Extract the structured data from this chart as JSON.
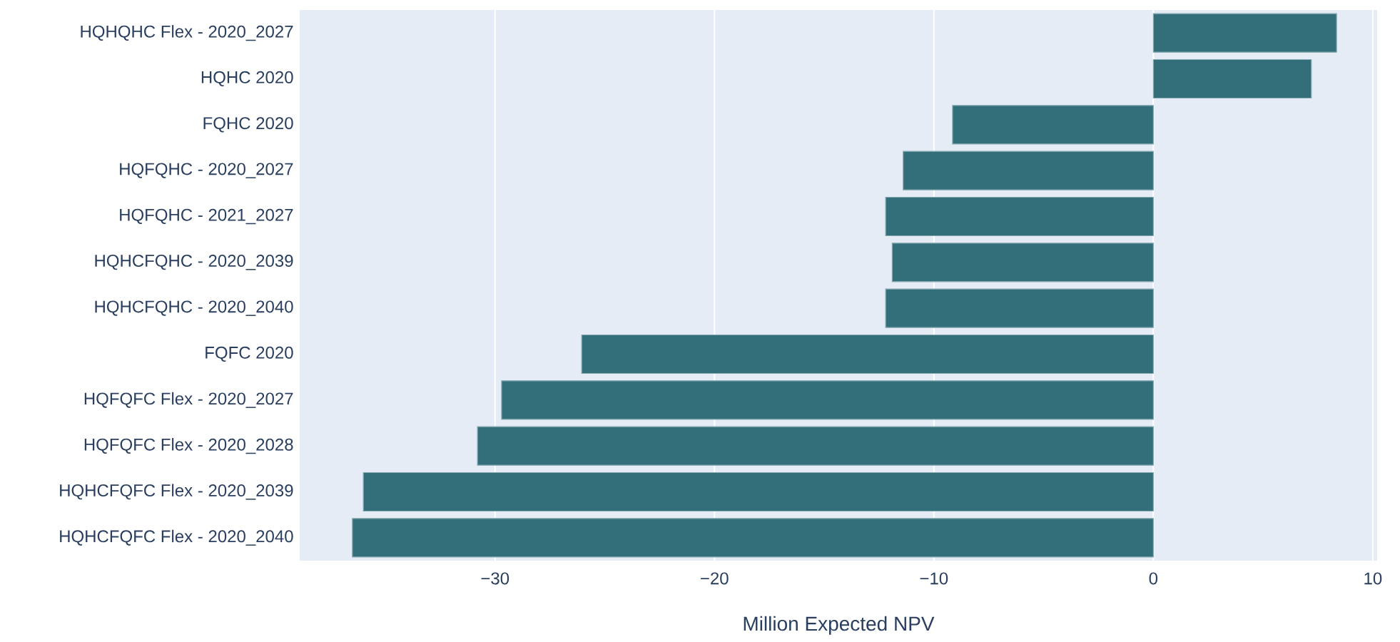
{
  "chart_data": {
    "type": "bar",
    "orientation": "horizontal",
    "xlabel": "Million Expected NPV",
    "categories": [
      "HQHQHC Flex - 2020_2027",
      "HQHC 2020",
      "FQHC 2020",
      "HQFQHC - 2020_2027",
      "HQFQHC - 2021_2027",
      "HQHCFQHC - 2020_2039",
      "HQHCFQHC - 2020_2040",
      "FQFC 2020",
      "HQFQFC Flex - 2020_2027",
      "HQFQFC Flex - 2020_2028",
      "HQHCFQFC Flex - 2020_2039",
      "HQHCFQFC Flex - 2020_2040"
    ],
    "values": [
      8.35,
      7.2,
      -9.15,
      -11.4,
      -12.2,
      -11.9,
      -12.2,
      -26.05,
      -29.7,
      -30.8,
      -36.0,
      -36.5
    ],
    "color": "#336f7a",
    "xlim": [
      -38.9,
      10.2
    ],
    "xticks": [
      {
        "value": -30,
        "label": "−30"
      },
      {
        "value": -20,
        "label": "−20"
      },
      {
        "value": -10,
        "label": "−10"
      },
      0,
      10
    ],
    "grid": "x"
  }
}
